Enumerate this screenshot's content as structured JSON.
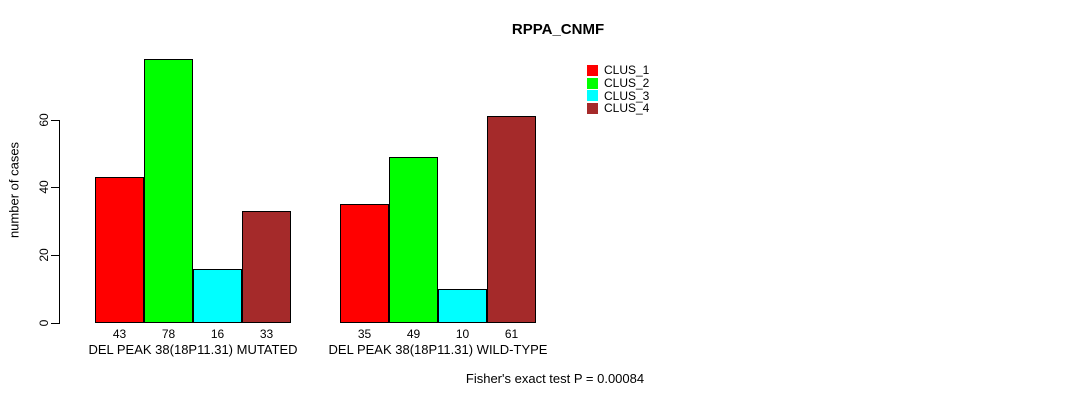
{
  "chart_data": {
    "type": "bar",
    "title": "RPPA_CNMF",
    "ylabel": "number of cases",
    "xlabel": "",
    "footnote": "Fisher's exact test P = 0.00084",
    "categories": [
      "DEL PEAK 38(18P11.31) MUTATED",
      "DEL PEAK 38(18P11.31) WILD-TYPE"
    ],
    "series": [
      {
        "name": "CLUS_1",
        "color": "#ff0000",
        "values": [
          43,
          35
        ]
      },
      {
        "name": "CLUS_2",
        "color": "#00ff00",
        "values": [
          78,
          49
        ]
      },
      {
        "name": "CLUS_3",
        "color": "#00ffff",
        "values": [
          16,
          10
        ]
      },
      {
        "name": "CLUS_4",
        "color": "#a52a2a",
        "values": [
          33,
          61
        ]
      }
    ],
    "yticks": [
      0,
      20,
      40,
      60
    ],
    "ylim": [
      0,
      78
    ],
    "bar_value_labels_shown": true,
    "legend": {
      "position": "top-right",
      "entries": [
        "CLUS_1",
        "CLUS_2",
        "CLUS_3",
        "CLUS_4"
      ]
    },
    "grid": false,
    "background": "#ffffff",
    "axis_color": "#000000"
  }
}
